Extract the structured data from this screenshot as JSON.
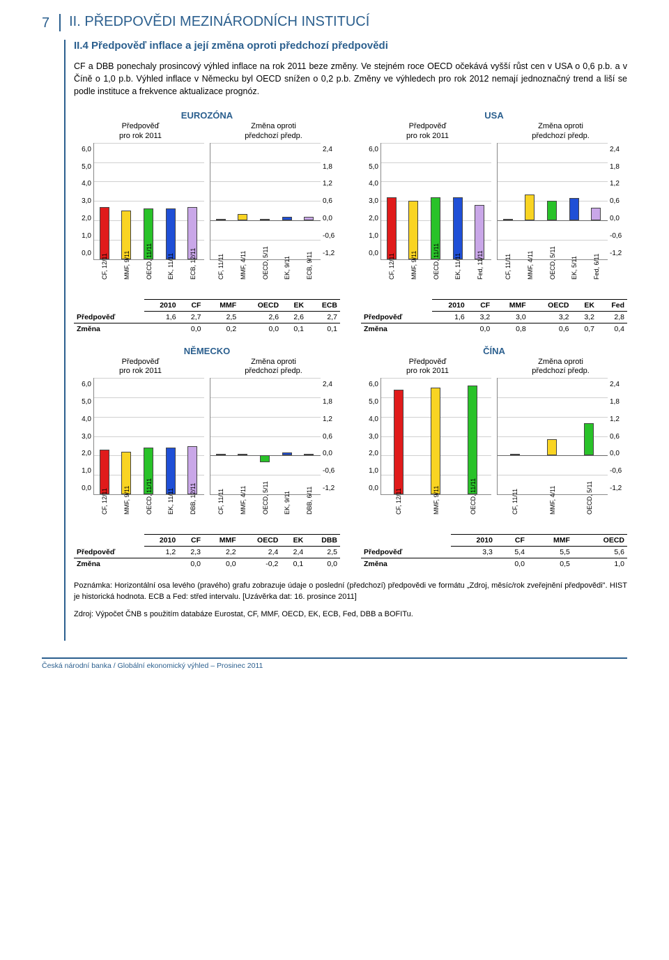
{
  "page_number": "7",
  "header_title": "II. PŘEDPOVĚDI MEZINÁRODNÍCH INSTITUCÍ",
  "subhead": "II.4 Předpověď inflace a její změna oproti předchozí předpovědi",
  "body_text": "CF a DBB ponechaly prosincový výhled inflace na rok 2011 beze změny. Ve stejném roce OECD očekává vyšší růst cen v USA o 0,6 p.b. a v Číně o 1,0 p.b. Výhled inflace v Německu byl OECD snížen o 0,2 p.b. Změny ve výhledech pro rok 2012 nemají jednoznačný trend a liší se podle instituce a frekvence aktualizace prognóz.",
  "sub_label_forecast": "Předpověď\npro rok 2011",
  "sub_label_change": "Změna oproti\npředchozí předp.",
  "colors": {
    "red": "#e01b1b",
    "yellow": "#f9d423",
    "green": "#29c229",
    "blue": "#1f4fd6",
    "purple": "#c9a7e8",
    "border": "#555555"
  },
  "panels": [
    {
      "id": "eurozona",
      "title": "EUROZÓNA",
      "left": {
        "ylim": [
          0,
          6
        ],
        "ytick_step": 1.0,
        "labels": [
          "CF, 12/11",
          "MMF, 9/11",
          "OECD, 11/11",
          "EK, 11/11",
          "ECB, 12/11"
        ],
        "values": [
          2.7,
          2.5,
          2.6,
          2.6,
          2.7
        ],
        "bar_colors": [
          "red",
          "yellow",
          "green",
          "blue",
          "purple"
        ]
      },
      "right": {
        "ylim": [
          -1.2,
          2.4
        ],
        "ytick_step": 0.6,
        "labels": [
          "CF, 11/11",
          "MMF, 4/11",
          "OECD, 5/11",
          "EK, 9/11",
          "ECB, 9/11"
        ],
        "values": [
          0.0,
          0.2,
          0.0,
          0.1,
          0.1
        ],
        "bar_colors": [
          "red",
          "yellow",
          "green",
          "blue",
          "purple"
        ]
      },
      "table": {
        "columns": [
          "",
          "2010",
          "CF",
          "MMF",
          "OECD",
          "EK",
          "ECB"
        ],
        "rows": [
          [
            "Předpověď",
            "1,6",
            "2,7",
            "2,5",
            "2,6",
            "2,6",
            "2,7"
          ],
          [
            "Změna",
            "",
            "0,0",
            "0,2",
            "0,0",
            "0,1",
            "0,1"
          ]
        ]
      }
    },
    {
      "id": "usa",
      "title": "USA",
      "left": {
        "ylim": [
          0,
          6
        ],
        "ytick_step": 1.0,
        "labels": [
          "CF, 12/11",
          "MMF, 9/11",
          "OECD, 11/11",
          "EK, 11/11",
          "Fed, 11/11"
        ],
        "values": [
          3.2,
          3.0,
          3.2,
          3.2,
          2.8
        ],
        "bar_colors": [
          "red",
          "yellow",
          "green",
          "blue",
          "purple"
        ]
      },
      "right": {
        "ylim": [
          -1.2,
          2.4
        ],
        "ytick_step": 0.6,
        "labels": [
          "CF, 11/11",
          "MMF, 4/11",
          "OECD, 5/11",
          "EK, 5/11",
          "Fed, 6/11"
        ],
        "values": [
          0.0,
          0.8,
          0.6,
          0.7,
          0.4
        ],
        "bar_colors": [
          "red",
          "yellow",
          "green",
          "blue",
          "purple"
        ]
      },
      "table": {
        "columns": [
          "",
          "2010",
          "CF",
          "MMF",
          "OECD",
          "EK",
          "Fed"
        ],
        "rows": [
          [
            "Předpověď",
            "1,6",
            "3,2",
            "3,0",
            "3,2",
            "3,2",
            "2,8"
          ],
          [
            "Změna",
            "",
            "0,0",
            "0,8",
            "0,6",
            "0,7",
            "0,4"
          ]
        ]
      }
    },
    {
      "id": "nemecko",
      "title": "NĚMECKO",
      "left": {
        "ylim": [
          0,
          6
        ],
        "ytick_step": 1.0,
        "labels": [
          "CF, 12/11",
          "MMF, 9/11",
          "OECD, 11/11",
          "EK, 11/11",
          "DBB, 12/11"
        ],
        "values": [
          2.3,
          2.2,
          2.4,
          2.4,
          2.5
        ],
        "bar_colors": [
          "red",
          "yellow",
          "green",
          "blue",
          "purple"
        ]
      },
      "right": {
        "ylim": [
          -1.2,
          2.4
        ],
        "ytick_step": 0.6,
        "labels": [
          "CF, 11/11",
          "MMF, 4/11",
          "OECD, 5/11",
          "EK, 9/11",
          "DBB, 6/11"
        ],
        "values": [
          0.0,
          0.0,
          -0.2,
          0.1,
          0.0
        ],
        "bar_colors": [
          "red",
          "yellow",
          "green",
          "blue",
          "purple"
        ]
      },
      "table": {
        "columns": [
          "",
          "2010",
          "CF",
          "MMF",
          "OECD",
          "EK",
          "DBB"
        ],
        "rows": [
          [
            "Předpověď",
            "1,2",
            "2,3",
            "2,2",
            "2,4",
            "2,4",
            "2,5"
          ],
          [
            "Změna",
            "",
            "0,0",
            "0,0",
            "-0,2",
            "0,1",
            "0,0"
          ]
        ]
      }
    },
    {
      "id": "cina",
      "title": "ČÍNA",
      "left": {
        "ylim": [
          0,
          6
        ],
        "ytick_step": 1.0,
        "labels": [
          "CF, 12/11",
          "MMF, 9/11",
          "OECD, 11/11"
        ],
        "values": [
          5.4,
          5.5,
          5.6
        ],
        "bar_colors": [
          "red",
          "yellow",
          "green"
        ]
      },
      "right": {
        "ylim": [
          -1.2,
          2.4
        ],
        "ytick_step": 0.6,
        "labels": [
          "CF, 11/11",
          "MMF, 4/11",
          "OECD, 5/11"
        ],
        "values": [
          0.0,
          0.5,
          1.0
        ],
        "bar_colors": [
          "red",
          "yellow",
          "green"
        ]
      },
      "table": {
        "columns": [
          "",
          "2010",
          "CF",
          "MMF",
          "OECD"
        ],
        "rows": [
          [
            "Předpověď",
            "3,3",
            "5,4",
            "5,5",
            "5,6"
          ],
          [
            "Změna",
            "",
            "0,0",
            "0,5",
            "1,0"
          ]
        ]
      }
    }
  ],
  "notes": "Poznámka: Horizontální osa levého (pravého) grafu zobrazuje údaje o poslední (předchozí) předpovědi ve formátu „Zdroj, měsíc/rok zveřejnění předpovědi\". HIST je historická hodnota. ECB a Fed: střed intervalu. [Uzávěrka dat: 16. prosince 2011]",
  "source": "Zdroj: Výpočet ČNB s použitím databáze Eurostat, CF, MMF, OECD, EK, ECB, Fed, DBB a BOFITu.",
  "footer": "Česká národní banka / Globální ekonomický výhled – Prosinec 2011"
}
